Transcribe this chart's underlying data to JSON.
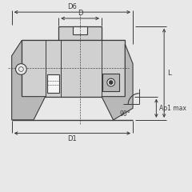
{
  "bg_color": "#e8e8e8",
  "body_light": "#d0d0d0",
  "body_mid": "#b8b8b8",
  "body_dark": "#a0a0a0",
  "insert_light": "#c8c8c8",
  "insert_dark": "#909090",
  "white": "#f5f5f5",
  "line_col": "#3a3a3a",
  "dim_col": "#3a3a3a",
  "fig_w": 2.4,
  "fig_h": 2.4,
  "dpi": 100,
  "labels": {
    "D6": "D6",
    "D": "D",
    "D1": "D1",
    "L": "L",
    "Ap1max": "Ap1 max",
    "angle": "90°"
  }
}
